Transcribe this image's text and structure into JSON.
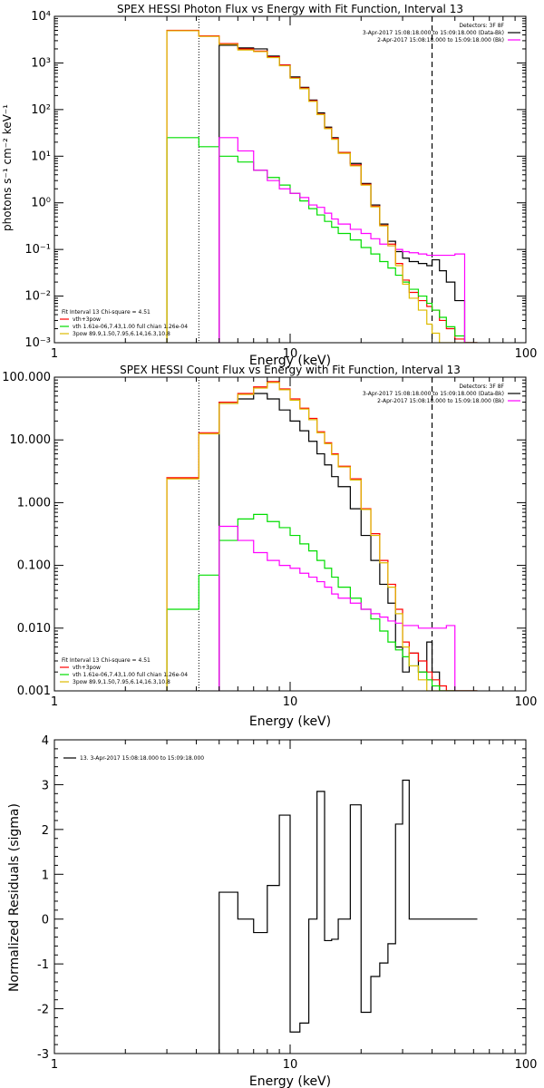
{
  "chart_data": [
    {
      "type": "line",
      "title": "SPEX HESSI Photon Flux vs Energy with Fit Function, Interval 13",
      "xlabel": "Energy (keV)",
      "ylabel": "photons s⁻¹ cm⁻² keV⁻¹",
      "xscale": "log",
      "yscale": "log",
      "xlim": [
        1,
        100
      ],
      "ylim": [
        0.001,
        10000
      ],
      "x_ticks": [
        "1",
        "10",
        "100"
      ],
      "y_ticks": [
        "10⁻³",
        "10⁻²",
        "10⁻¹",
        "10⁰",
        "10¹",
        "10²",
        "10³",
        "10⁴"
      ],
      "legend_top_right": [
        {
          "text": "Detectors: 3F 8F",
          "color": ""
        },
        {
          "text": "3-Apr-2017 15:08:18.000 to 15:09:18.000 (Data-Bk)",
          "color": "#000000"
        },
        {
          "text": "2-Apr-2017 15:08:18.000 to 15:09:18.000 (Bk)",
          "color": "#ff00ff"
        }
      ],
      "legend_bottom_left": [
        {
          "text": "Fit Interval 13   Chi-square = 4.51",
          "color": ""
        },
        {
          "text": "vth+3pow",
          "color": "#ff0000"
        },
        {
          "text": "vth 1.61e-06,7.43,1.00   full chian 1.26e-04",
          "color": "#00dd00"
        },
        {
          "text": "3pow 89.9,1.50,7.95,6.14,16.3,10.8",
          "color": "#ddbb00"
        }
      ],
      "vlines": [
        {
          "x": 4.1,
          "style": "dotted"
        },
        {
          "x": 40,
          "style": "dashed"
        }
      ],
      "series": [
        {
          "color": "#000000",
          "x": [
            5,
            6,
            7,
            8,
            9,
            10,
            11,
            12,
            13,
            14,
            15,
            16,
            18,
            20,
            22,
            24,
            26,
            28,
            30,
            32,
            35,
            38,
            40,
            43,
            46,
            50,
            55
          ],
          "y": [
            2400,
            2100,
            2000,
            1400,
            900,
            500,
            300,
            160,
            85,
            42,
            25,
            12,
            7,
            2.6,
            0.9,
            0.35,
            0.15,
            0.09,
            0.065,
            0.055,
            0.05,
            0.045,
            0.06,
            0.035,
            0.02,
            0.008,
            0.001
          ]
        },
        {
          "color": "#ff0000",
          "x": [
            3,
            4.1,
            5,
            6,
            7,
            8,
            9,
            10,
            11,
            12,
            13,
            14,
            15,
            16,
            18,
            20,
            22,
            24,
            26,
            28,
            30,
            32,
            35,
            38,
            40,
            43,
            46,
            50,
            55
          ],
          "y": [
            5000,
            3800,
            2600,
            2000,
            1800,
            1350,
            900,
            480,
            290,
            155,
            80,
            40,
            24,
            12,
            6.5,
            2.5,
            0.85,
            0.33,
            0.13,
            0.05,
            0.022,
            0.012,
            0.008,
            0.006,
            0.005,
            0.003,
            0.002,
            0.0012,
            0.001
          ]
        },
        {
          "color": "#00dd00",
          "x": [
            3,
            4.1,
            5,
            6,
            7,
            8,
            9,
            10,
            11,
            12,
            13,
            14,
            15,
            16,
            18,
            20,
            22,
            24,
            26,
            28,
            30,
            32,
            35,
            38,
            40,
            43,
            46,
            50,
            55
          ],
          "y": [
            25,
            16,
            10,
            7.5,
            5,
            3.5,
            2.4,
            1.6,
            1.1,
            0.75,
            0.55,
            0.4,
            0.3,
            0.22,
            0.16,
            0.11,
            0.08,
            0.055,
            0.04,
            0.028,
            0.02,
            0.014,
            0.01,
            0.007,
            0.005,
            0.0035,
            0.0022,
            0.0014,
            0.001
          ]
        },
        {
          "color": "#ff00ff",
          "x": [
            5,
            6,
            7,
            8,
            9,
            10,
            11,
            12,
            13,
            14,
            15,
            16,
            18,
            20,
            22,
            24,
            26,
            28,
            30,
            32,
            35,
            38,
            40,
            43,
            46,
            50,
            55
          ],
          "y": [
            25,
            13,
            5,
            3,
            2,
            1.6,
            1.3,
            0.9,
            0.8,
            0.6,
            0.45,
            0.35,
            0.27,
            0.22,
            0.17,
            0.13,
            0.12,
            0.1,
            0.09,
            0.085,
            0.08,
            0.075,
            0.075,
            0.075,
            0.075,
            0.08,
            0.001
          ]
        },
        {
          "color": "#ddbb00",
          "x": [
            3,
            4.1,
            5,
            6,
            7,
            8,
            9,
            10,
            11,
            12,
            13,
            14,
            15,
            16,
            18,
            20,
            22,
            24,
            26,
            28,
            30,
            32,
            35,
            38,
            40,
            43,
            46,
            50,
            55
          ],
          "y": [
            4900,
            3700,
            2500,
            1900,
            1750,
            1300,
            870,
            470,
            280,
            150,
            78,
            39,
            23,
            11.5,
            6.2,
            2.4,
            0.82,
            0.32,
            0.12,
            0.045,
            0.018,
            0.009,
            0.005,
            0.0025,
            0.0016,
            0.001,
            0.001,
            0.001,
            0.001
          ]
        }
      ]
    },
    {
      "type": "line",
      "title": "SPEX HESSI Count Flux vs Energy with Fit Function, Interval 13",
      "xlabel": "Energy (keV)",
      "ylabel": "",
      "xscale": "log",
      "yscale": "log",
      "xlim": [
        1,
        100
      ],
      "ylim": [
        0.001,
        100
      ],
      "x_ticks": [
        "1",
        "10",
        "100"
      ],
      "y_ticks": [
        "0.001",
        "0.010",
        "0.100",
        "1.000",
        "10.000",
        "100.000"
      ],
      "legend_top_right": [
        {
          "text": "Detectors: 3F 8F",
          "color": ""
        },
        {
          "text": "3-Apr-2017 15:08:18.000 to 15:09:18.000 (Data-Bk)",
          "color": "#000000"
        },
        {
          "text": "2-Apr-2017 15:08:18.000 to 15:09:18.000 (Bk)",
          "color": "#ff00ff"
        }
      ],
      "legend_bottom_left": [
        {
          "text": "Fit Interval 13   Chi-square = 4.51",
          "color": ""
        },
        {
          "text": "vth+3pow",
          "color": "#ff0000"
        },
        {
          "text": "vth 1.61e-06,7.43,1.00   full chian 1.26e-04",
          "color": "#00dd00"
        },
        {
          "text": "3pow 89.9,1.50,7.95,6.14,16.3,10.8",
          "color": "#ddbb00"
        }
      ],
      "vlines": [
        {
          "x": 4.1,
          "style": "dotted"
        },
        {
          "x": 40,
          "style": "dashed"
        }
      ],
      "series": [
        {
          "color": "#000000",
          "x": [
            5,
            6,
            7,
            8,
            9,
            10,
            11,
            12,
            13,
            14,
            15,
            16,
            18,
            20,
            22,
            24,
            26,
            28,
            30,
            32,
            35,
            38,
            40,
            43,
            46,
            50,
            55
          ],
          "y": [
            40,
            45,
            55,
            45,
            30,
            20,
            14,
            9.5,
            6,
            4,
            2.6,
            1.8,
            0.8,
            0.3,
            0.12,
            0.05,
            0.025,
            0.005,
            0.002,
            0.004,
            0.002,
            0.006,
            0.002,
            0.001,
            0.001,
            0.001,
            0.001
          ]
        },
        {
          "color": "#ff0000",
          "x": [
            3,
            4.1,
            5,
            6,
            7,
            8,
            9,
            10,
            11,
            12,
            13,
            14,
            15,
            16,
            18,
            20,
            22,
            24,
            26,
            28,
            30,
            32,
            35,
            38,
            40,
            43,
            46,
            50,
            55
          ],
          "y": [
            2.5,
            13,
            40,
            55,
            70,
            85,
            65,
            45,
            32,
            22,
            13.5,
            9,
            6,
            3.8,
            2.4,
            0.8,
            0.32,
            0.12,
            0.05,
            0.02,
            0.006,
            0.004,
            0.003,
            0.002,
            0.0015,
            0.0012,
            0.001,
            0.001,
            0.001
          ]
        },
        {
          "color": "#00dd00",
          "x": [
            3,
            4.1,
            5,
            6,
            7,
            8,
            9,
            10,
            11,
            12,
            13,
            14,
            15,
            16,
            18,
            20,
            22,
            24,
            26,
            28,
            30,
            32,
            35,
            38,
            40,
            43,
            46,
            50,
            55
          ],
          "y": [
            0.02,
            0.07,
            0.25,
            0.55,
            0.65,
            0.5,
            0.4,
            0.3,
            0.22,
            0.17,
            0.12,
            0.09,
            0.065,
            0.045,
            0.03,
            0.02,
            0.014,
            0.009,
            0.006,
            0.0045,
            0.0035,
            0.0025,
            0.002,
            0.0015,
            0.0012,
            0.001,
            0.001,
            0.001,
            0.001
          ]
        },
        {
          "color": "#ff00ff",
          "x": [
            5,
            6,
            7,
            8,
            9,
            10,
            11,
            12,
            13,
            14,
            15,
            16,
            18,
            20,
            22,
            24,
            26,
            28,
            30,
            32,
            35,
            38,
            40,
            43,
            46,
            50,
            55
          ],
          "y": [
            0.42,
            0.25,
            0.16,
            0.12,
            0.1,
            0.09,
            0.075,
            0.065,
            0.055,
            0.045,
            0.035,
            0.03,
            0.025,
            0.02,
            0.017,
            0.015,
            0.013,
            0.012,
            0.011,
            0.011,
            0.01,
            0.01,
            0.01,
            0.01,
            0.011,
            0.001,
            0.001
          ]
        },
        {
          "color": "#ddbb00",
          "x": [
            3,
            4.1,
            5,
            6,
            7,
            8,
            9,
            10,
            11,
            12,
            13,
            14,
            15,
            16,
            18,
            20,
            22,
            24,
            26,
            28,
            30,
            32,
            35,
            38,
            40,
            43,
            46,
            50,
            55
          ],
          "y": [
            2.4,
            12.5,
            38,
            53,
            67,
            82,
            63,
            43,
            31,
            21,
            13,
            8.7,
            5.8,
            3.7,
            2.3,
            0.78,
            0.3,
            0.11,
            0.045,
            0.017,
            0.005,
            0.0025,
            0.0015,
            0.001,
            0.001,
            0.001,
            0.001,
            0.001,
            0.001
          ]
        }
      ]
    },
    {
      "type": "line",
      "title": "",
      "xlabel": "Energy (keV)",
      "ylabel": "Normalized Residuals (sigma)",
      "xscale": "log",
      "yscale": "linear",
      "xlim": [
        1,
        100
      ],
      "ylim": [
        -3,
        4
      ],
      "x_ticks": [
        "1",
        "10",
        "100"
      ],
      "y_ticks": [
        "-3",
        "-2",
        "-1",
        "0",
        "1",
        "2",
        "3",
        "4"
      ],
      "legend_top_left": [
        {
          "text": "13.  3-Apr-2017 15:08:18.000 to 15:09:18.000",
          "color": "#000000"
        }
      ],
      "series": [
        {
          "color": "#000000",
          "x": [
            5,
            6,
            7,
            8,
            9,
            10,
            11,
            12,
            13,
            14,
            15,
            16,
            18,
            20,
            22,
            24,
            26,
            28,
            30,
            32,
            35,
            38,
            40,
            43,
            46,
            50,
            55
          ],
          "y": [
            0.6,
            0.0,
            -0.3,
            0.75,
            2.32,
            -2.52,
            -2.32,
            0.0,
            2.85,
            -0.48,
            -0.45,
            0.0,
            2.55,
            -2.08,
            -1.28,
            -0.98,
            -0.55,
            2.12,
            3.1,
            0.0,
            0.0,
            0.0,
            0.0,
            0.0,
            0.0,
            0.0,
            0.0
          ]
        }
      ]
    }
  ]
}
